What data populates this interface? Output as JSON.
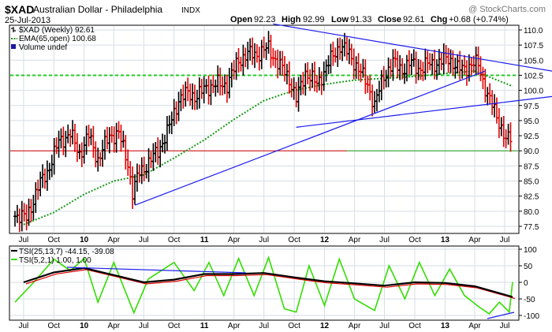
{
  "header": {
    "symbol": "$XAD",
    "name": "Australian Dollar - Philadelphia",
    "exchange": "INDX",
    "date": "25-Jul-2013",
    "watermark": "@ StockCharts.com",
    "ohlc": {
      "open_label": "Open",
      "open": "92.23",
      "high_label": "High",
      "high": "92.99",
      "low_label": "Low",
      "low": "91.33",
      "close_label": "Close",
      "close": "92.61",
      "chg_label": "Chg",
      "chg": "+0.68 (+0.74%)"
    }
  },
  "legend_main": {
    "price": "$XAD (Weekly) 92.61",
    "ema": "EMA(65,open) 100.68",
    "volume": "Volume undef"
  },
  "legend_tsi": {
    "tsi1": "TSI(25,13,7) -44.15, -39.08",
    "tsi2": "TSI(5,2,1) 1.00, 1.00"
  },
  "colors": {
    "background": "#ffffff",
    "panel_border": "#000000",
    "grid": "#d6dee6",
    "up_bar": "#000000",
    "down_bar": "#e00000",
    "ema": "#1a9a1a",
    "trendline": "#1a1aee",
    "horizontal_red": "#cc0000",
    "horizontal_green": "#1a9a1a",
    "dashed_green": "#22cc22",
    "tsi_signal": "#e00000",
    "tsi_fast": "#33dd00",
    "tsi_main": "#000000"
  },
  "chart_data": [
    {
      "type": "ohlc",
      "title": "$XAD Australian Dollar - Philadelphia (Weekly)",
      "x_range": [
        "2009-06",
        "2013-07"
      ],
      "x_tick_labels": [
        "Jul",
        "Oct",
        "10",
        "Apr",
        "Jul",
        "Oct",
        "11",
        "Apr",
        "Jul",
        "Oct",
        "12",
        "Apr",
        "Jul",
        "Oct",
        "13",
        "Apr",
        "Jul"
      ],
      "y_ticks": [
        77.5,
        80.0,
        82.5,
        85.0,
        87.5,
        90.0,
        92.5,
        95.0,
        97.5,
        100.0,
        102.5,
        105.0,
        107.5,
        110.0
      ],
      "ylim": [
        76.5,
        111.2
      ],
      "grid": true,
      "series": [
        {
          "name": "$XAD (Weekly)",
          "close_points": [
            [
              "2009-06-05",
              79.5
            ],
            [
              "2009-07-10",
              78.8
            ],
            [
              "2009-08-14",
              84.0
            ],
            [
              "2009-09-11",
              86.5
            ],
            [
              "2009-10-16",
              91.5
            ],
            [
              "2009-11-20",
              92.8
            ],
            [
              "2009-12-18",
              89.5
            ],
            [
              "2010-01-15",
              92.5
            ],
            [
              "2010-02-12",
              88.5
            ],
            [
              "2010-03-19",
              92.5
            ],
            [
              "2010-04-16",
              92.8
            ],
            [
              "2010-05-14",
              88.0
            ],
            [
              "2010-05-28",
              83.0
            ],
            [
              "2010-06-18",
              86.5
            ],
            [
              "2010-07-16",
              88.0
            ],
            [
              "2010-08-13",
              90.0
            ],
            [
              "2010-09-10",
              93.0
            ],
            [
              "2010-10-15",
              98.5
            ],
            [
              "2010-11-12",
              99.5
            ],
            [
              "2010-12-10",
              99.0
            ],
            [
              "2011-01-07",
              100.5
            ],
            [
              "2011-02-11",
              101.0
            ],
            [
              "2011-03-11",
              101.0
            ],
            [
              "2011-04-15",
              105.0
            ],
            [
              "2011-05-13",
              106.0
            ],
            [
              "2011-06-10",
              106.0
            ],
            [
              "2011-07-15",
              107.0
            ],
            [
              "2011-08-12",
              104.5
            ],
            [
              "2011-09-16",
              102.0
            ],
            [
              "2011-10-07",
              98.5
            ],
            [
              "2011-11-04",
              103.0
            ],
            [
              "2011-12-09",
              101.0
            ],
            [
              "2012-01-13",
              104.5
            ],
            [
              "2012-02-17",
              107.5
            ],
            [
              "2012-03-16",
              106.0
            ],
            [
              "2012-04-13",
              103.5
            ],
            [
              "2012-05-11",
              101.0
            ],
            [
              "2012-06-01",
              97.5
            ],
            [
              "2012-06-29",
              102.5
            ],
            [
              "2012-07-27",
              104.5
            ],
            [
              "2012-08-24",
              103.5
            ],
            [
              "2012-09-21",
              104.5
            ],
            [
              "2012-10-19",
              103.5
            ],
            [
              "2012-11-16",
              104.5
            ],
            [
              "2012-12-14",
              104.5
            ],
            [
              "2013-01-11",
              105.5
            ],
            [
              "2013-02-08",
              103.5
            ],
            [
              "2013-03-15",
              104.0
            ],
            [
              "2013-04-12",
              104.5
            ],
            [
              "2013-05-10",
              99.0
            ],
            [
              "2013-06-07",
              96.0
            ],
            [
              "2013-07-05",
              91.5
            ],
            [
              "2013-07-25",
              92.61
            ]
          ]
        },
        {
          "name": "EMA(65,open)",
          "points": [
            [
              "2009-07-01",
              77.8
            ],
            [
              "2009-10-01",
              79.8
            ],
            [
              "2010-01-01",
              82.8
            ],
            [
              "2010-04-01",
              85.0
            ],
            [
              "2010-07-01",
              86.0
            ],
            [
              "2010-10-01",
              88.8
            ],
            [
              "2011-01-01",
              91.8
            ],
            [
              "2011-04-01",
              95.2
            ],
            [
              "2011-07-01",
              98.3
            ],
            [
              "2011-10-01",
              100.0
            ],
            [
              "2012-01-01",
              101.0
            ],
            [
              "2012-04-01",
              101.7
            ],
            [
              "2012-07-01",
              102.0
            ],
            [
              "2012-10-01",
              102.3
            ],
            [
              "2013-01-01",
              102.8
            ],
            [
              "2013-04-01",
              103.2
            ],
            [
              "2013-07-25",
              100.68
            ]
          ]
        }
      ],
      "trendlines": [
        {
          "from": [
            "2010-06-04",
            81.0
          ],
          "to": [
            "2013-05-03",
            103.2
          ]
        },
        {
          "from": [
            "2011-10-07",
            93.9
          ],
          "to": [
            "2013-07-25",
            98.2
          ]
        },
        {
          "from": [
            "2011-07-29",
            111.0
          ],
          "to": [
            "2013-07-25",
            104.3
          ]
        }
      ],
      "horizontal_lines": [
        {
          "y": 90.0,
          "style": "solid"
        },
        {
          "y": 102.5,
          "style": "dashed"
        }
      ]
    },
    {
      "type": "line",
      "title": "TSI",
      "x_range": [
        "2009-06",
        "2013-07"
      ],
      "y_ticks": [
        -100,
        -50,
        0,
        50,
        100
      ],
      "ylim": [
        -100,
        100
      ],
      "grid": true,
      "series": [
        {
          "name": "TSI(25,13,7)",
          "points": [
            [
              "2009-07-01",
              0
            ],
            [
              "2009-10-01",
              30
            ],
            [
              "2010-01-01",
              43
            ],
            [
              "2010-04-01",
              22
            ],
            [
              "2010-07-01",
              0
            ],
            [
              "2010-10-01",
              8
            ],
            [
              "2011-01-01",
              25
            ],
            [
              "2011-04-01",
              25
            ],
            [
              "2011-07-01",
              28
            ],
            [
              "2011-10-01",
              15
            ],
            [
              "2012-01-01",
              3
            ],
            [
              "2012-04-01",
              -3
            ],
            [
              "2012-07-01",
              -10
            ],
            [
              "2012-10-01",
              0
            ],
            [
              "2013-01-01",
              -2
            ],
            [
              "2013-04-01",
              -12
            ],
            [
              "2013-07-25",
              -44.15
            ]
          ]
        },
        {
          "name": "TSI(5,2,1)",
          "points": [
            [
              "2009-06-05",
              -60
            ],
            [
              "2009-08-01",
              0
            ],
            [
              "2009-10-01",
              70
            ],
            [
              "2009-11-20",
              35
            ],
            [
              "2010-01-01",
              72
            ],
            [
              "2010-02-12",
              -60
            ],
            [
              "2010-04-01",
              60
            ],
            [
              "2010-06-01",
              -92
            ],
            [
              "2010-07-15",
              10
            ],
            [
              "2010-10-01",
              60
            ],
            [
              "2010-12-01",
              -25
            ],
            [
              "2011-01-15",
              60
            ],
            [
              "2011-03-01",
              -40
            ],
            [
              "2011-04-15",
              72
            ],
            [
              "2011-06-01",
              -40
            ],
            [
              "2011-07-15",
              75
            ],
            [
              "2011-09-01",
              -80
            ],
            [
              "2011-10-07",
              -90
            ],
            [
              "2011-11-15",
              50
            ],
            [
              "2012-01-01",
              -70
            ],
            [
              "2012-02-15",
              70
            ],
            [
              "2012-04-01",
              -50
            ],
            [
              "2012-06-01",
              -85
            ],
            [
              "2012-07-15",
              50
            ],
            [
              "2012-09-01",
              -50
            ],
            [
              "2012-10-15",
              60
            ],
            [
              "2012-12-01",
              -40
            ],
            [
              "2013-01-15",
              40
            ],
            [
              "2013-03-01",
              -40
            ],
            [
              "2013-04-15",
              -75
            ],
            [
              "2013-05-15",
              -95
            ],
            [
              "2013-06-15",
              -60
            ],
            [
              "2013-07-15",
              -90
            ],
            [
              "2013-07-25",
              1.0
            ]
          ]
        }
      ],
      "horizontal_lines": [
        {
          "y": 0
        }
      ]
    }
  ]
}
